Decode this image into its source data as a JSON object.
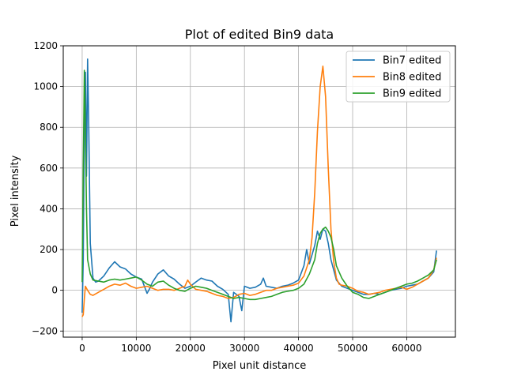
{
  "chart_data": {
    "type": "line",
    "title": "Plot of edited Bin9 data",
    "xlabel": "Pixel unit distance",
    "ylabel": "Pixel intensity",
    "xlim": [
      -3500,
      69000
    ],
    "ylim": [
      -230,
      1200
    ],
    "xticks": [
      0,
      10000,
      20000,
      30000,
      40000,
      50000,
      60000
    ],
    "yticks": [
      -200,
      0,
      200,
      400,
      600,
      800,
      1000,
      1200
    ],
    "grid": true,
    "legend_position": "upper right",
    "series": [
      {
        "name": "Bin7 edited",
        "color": "#1f77b4",
        "points": [
          [
            0,
            -110
          ],
          [
            200,
            150
          ],
          [
            400,
            820
          ],
          [
            600,
            1070
          ],
          [
            800,
            560
          ],
          [
            1000,
            1135
          ],
          [
            1200,
            820
          ],
          [
            1500,
            230
          ],
          [
            2000,
            60
          ],
          [
            2500,
            40
          ],
          [
            3000,
            45
          ],
          [
            4000,
            70
          ],
          [
            5000,
            110
          ],
          [
            6000,
            140
          ],
          [
            7000,
            115
          ],
          [
            8000,
            105
          ],
          [
            9000,
            80
          ],
          [
            10000,
            65
          ],
          [
            11000,
            55
          ],
          [
            11500,
            20
          ],
          [
            12000,
            -15
          ],
          [
            12500,
            10
          ],
          [
            13000,
            40
          ],
          [
            14000,
            80
          ],
          [
            15000,
            100
          ],
          [
            16000,
            70
          ],
          [
            17000,
            55
          ],
          [
            18000,
            30
          ],
          [
            19000,
            10
          ],
          [
            20000,
            20
          ],
          [
            21000,
            40
          ],
          [
            22000,
            60
          ],
          [
            23000,
            50
          ],
          [
            24000,
            45
          ],
          [
            25000,
            20
          ],
          [
            26000,
            5
          ],
          [
            27000,
            -20
          ],
          [
            27500,
            -155
          ],
          [
            28000,
            -10
          ],
          [
            29000,
            -30
          ],
          [
            29500,
            -100
          ],
          [
            30000,
            20
          ],
          [
            31000,
            10
          ],
          [
            32000,
            15
          ],
          [
            33000,
            30
          ],
          [
            33500,
            60
          ],
          [
            34000,
            20
          ],
          [
            35000,
            15
          ],
          [
            36000,
            10
          ],
          [
            37000,
            20
          ],
          [
            38000,
            25
          ],
          [
            39000,
            35
          ],
          [
            40000,
            50
          ],
          [
            41000,
            120
          ],
          [
            41500,
            200
          ],
          [
            42000,
            130
          ],
          [
            43000,
            220
          ],
          [
            43500,
            290
          ],
          [
            44000,
            250
          ],
          [
            44500,
            300
          ],
          [
            45000,
            290
          ],
          [
            45500,
            230
          ],
          [
            46000,
            150
          ],
          [
            47000,
            50
          ],
          [
            48000,
            20
          ],
          [
            49000,
            10
          ],
          [
            50000,
            0
          ],
          [
            51000,
            -10
          ],
          [
            52000,
            -20
          ],
          [
            53000,
            -20
          ],
          [
            54000,
            -15
          ],
          [
            55000,
            -20
          ],
          [
            56000,
            -10
          ],
          [
            57000,
            0
          ],
          [
            58000,
            5
          ],
          [
            59000,
            10
          ],
          [
            60000,
            20
          ],
          [
            61000,
            25
          ],
          [
            62000,
            30
          ],
          [
            63000,
            45
          ],
          [
            64000,
            60
          ],
          [
            65000,
            90
          ],
          [
            65500,
            195
          ]
        ]
      },
      {
        "name": "Bin8 edited",
        "color": "#ff7f0e",
        "points": [
          [
            0,
            -130
          ],
          [
            200,
            -120
          ],
          [
            400,
            -40
          ],
          [
            600,
            20
          ],
          [
            800,
            10
          ],
          [
            1000,
            0
          ],
          [
            1500,
            -20
          ],
          [
            2000,
            -25
          ],
          [
            3000,
            -10
          ],
          [
            4000,
            5
          ],
          [
            5000,
            20
          ],
          [
            6000,
            30
          ],
          [
            7000,
            25
          ],
          [
            8000,
            35
          ],
          [
            9000,
            20
          ],
          [
            10000,
            10
          ],
          [
            11000,
            15
          ],
          [
            12000,
            20
          ],
          [
            13000,
            10
          ],
          [
            14000,
            0
          ],
          [
            15000,
            5
          ],
          [
            16000,
            5
          ],
          [
            17000,
            0
          ],
          [
            18000,
            10
          ],
          [
            19000,
            20
          ],
          [
            19500,
            50
          ],
          [
            20000,
            30
          ],
          [
            21000,
            5
          ],
          [
            22000,
            0
          ],
          [
            23000,
            -5
          ],
          [
            24000,
            -15
          ],
          [
            25000,
            -25
          ],
          [
            26000,
            -30
          ],
          [
            27000,
            -40
          ],
          [
            28000,
            -35
          ],
          [
            29000,
            -20
          ],
          [
            30000,
            -15
          ],
          [
            31000,
            -25
          ],
          [
            32000,
            -20
          ],
          [
            33000,
            -10
          ],
          [
            34000,
            0
          ],
          [
            35000,
            0
          ],
          [
            36000,
            10
          ],
          [
            37000,
            15
          ],
          [
            38000,
            20
          ],
          [
            39000,
            25
          ],
          [
            40000,
            35
          ],
          [
            41000,
            70
          ],
          [
            42000,
            150
          ],
          [
            42500,
            260
          ],
          [
            43000,
            480
          ],
          [
            43500,
            780
          ],
          [
            44000,
            1000
          ],
          [
            44500,
            1100
          ],
          [
            45000,
            950
          ],
          [
            45500,
            600
          ],
          [
            46000,
            300
          ],
          [
            46500,
            140
          ],
          [
            47000,
            60
          ],
          [
            47500,
            30
          ],
          [
            48000,
            25
          ],
          [
            49000,
            20
          ],
          [
            50000,
            10
          ],
          [
            51000,
            -5
          ],
          [
            52000,
            -10
          ],
          [
            53000,
            -20
          ],
          [
            54000,
            -15
          ],
          [
            55000,
            -10
          ],
          [
            56000,
            0
          ],
          [
            57000,
            5
          ],
          [
            58000,
            10
          ],
          [
            59000,
            15
          ],
          [
            60000,
            5
          ],
          [
            61000,
            15
          ],
          [
            62000,
            30
          ],
          [
            63000,
            45
          ],
          [
            64000,
            60
          ],
          [
            65000,
            100
          ],
          [
            65500,
            160
          ]
        ]
      },
      {
        "name": "Bin9 edited",
        "color": "#2ca02c",
        "points": [
          [
            0,
            40
          ],
          [
            200,
            600
          ],
          [
            400,
            1080
          ],
          [
            600,
            800
          ],
          [
            800,
            400
          ],
          [
            1000,
            150
          ],
          [
            1500,
            80
          ],
          [
            2000,
            50
          ],
          [
            3000,
            45
          ],
          [
            4000,
            40
          ],
          [
            5000,
            50
          ],
          [
            6000,
            55
          ],
          [
            7000,
            50
          ],
          [
            8000,
            55
          ],
          [
            9000,
            60
          ],
          [
            10000,
            65
          ],
          [
            11000,
            50
          ],
          [
            12000,
            30
          ],
          [
            13000,
            20
          ],
          [
            14000,
            40
          ],
          [
            15000,
            45
          ],
          [
            16000,
            25
          ],
          [
            17000,
            10
          ],
          [
            18000,
            0
          ],
          [
            19000,
            -5
          ],
          [
            20000,
            10
          ],
          [
            21000,
            20
          ],
          [
            22000,
            15
          ],
          [
            23000,
            10
          ],
          [
            24000,
            0
          ],
          [
            25000,
            -10
          ],
          [
            26000,
            -20
          ],
          [
            27000,
            -30
          ],
          [
            28000,
            -40
          ],
          [
            29000,
            -35
          ],
          [
            30000,
            -40
          ],
          [
            31000,
            -45
          ],
          [
            32000,
            -45
          ],
          [
            33000,
            -40
          ],
          [
            34000,
            -35
          ],
          [
            35000,
            -30
          ],
          [
            36000,
            -20
          ],
          [
            37000,
            -10
          ],
          [
            38000,
            -5
          ],
          [
            39000,
            0
          ],
          [
            40000,
            10
          ],
          [
            41000,
            30
          ],
          [
            42000,
            80
          ],
          [
            43000,
            150
          ],
          [
            43500,
            230
          ],
          [
            44000,
            280
          ],
          [
            44500,
            300
          ],
          [
            45000,
            310
          ],
          [
            45500,
            290
          ],
          [
            46000,
            260
          ],
          [
            46500,
            200
          ],
          [
            47000,
            120
          ],
          [
            48000,
            60
          ],
          [
            49000,
            20
          ],
          [
            50000,
            -10
          ],
          [
            51000,
            -20
          ],
          [
            52000,
            -35
          ],
          [
            53000,
            -40
          ],
          [
            54000,
            -30
          ],
          [
            55000,
            -20
          ],
          [
            56000,
            -10
          ],
          [
            57000,
            0
          ],
          [
            58000,
            10
          ],
          [
            59000,
            20
          ],
          [
            60000,
            30
          ],
          [
            61000,
            35
          ],
          [
            62000,
            45
          ],
          [
            63000,
            60
          ],
          [
            64000,
            75
          ],
          [
            65000,
            100
          ],
          [
            65500,
            150
          ]
        ]
      }
    ]
  }
}
